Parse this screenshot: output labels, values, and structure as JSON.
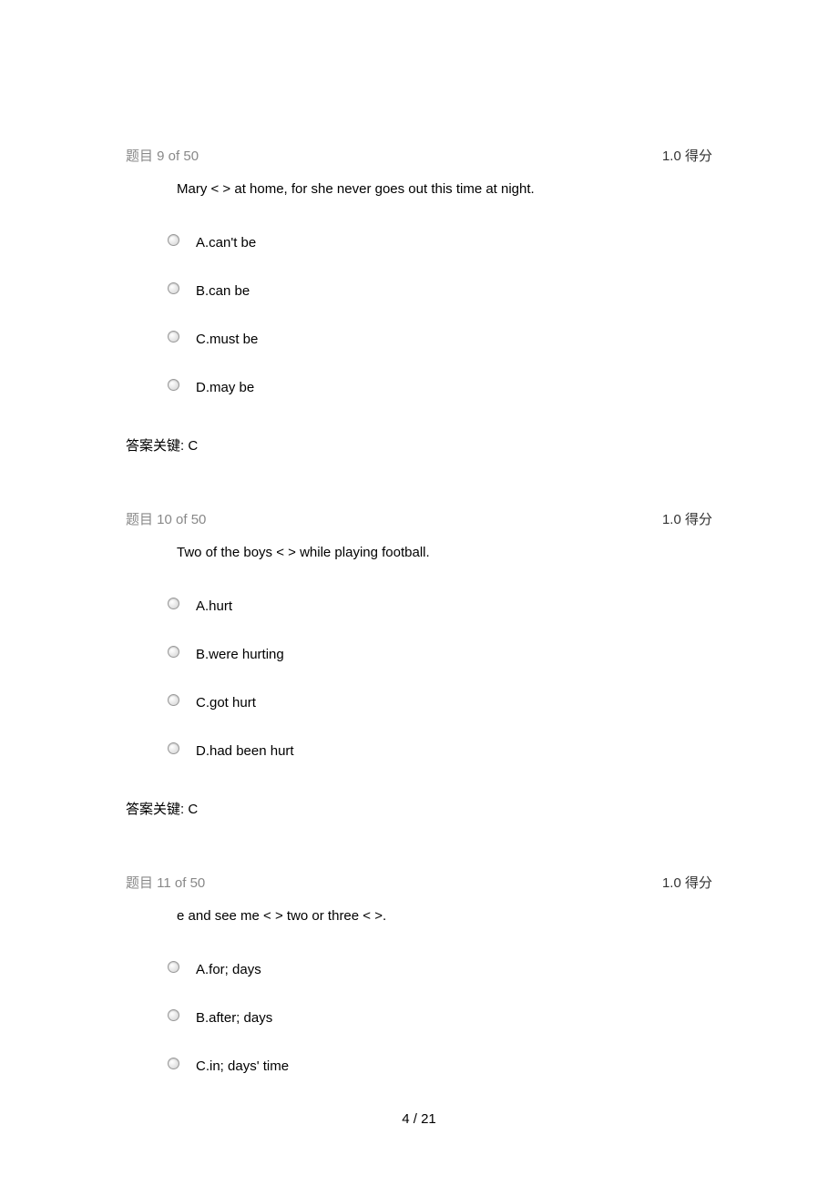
{
  "page": {
    "current": 4,
    "total": 21,
    "footer_text": "4 / 21"
  },
  "questions": [
    {
      "number_label": "题目  9 of 50",
      "score_label": "1.0  得分",
      "text": "Mary < > at home, for she never goes out this time at night.",
      "options": [
        "A.can't be",
        "B.can be",
        "C.must be",
        "D.may be"
      ],
      "answer_label": "答案关键: C"
    },
    {
      "number_label": "题目  10 of 50",
      "score_label": "1.0  得分",
      "text": "Two of the boys < > while playing football.",
      "options": [
        "A.hurt",
        "B.were hurting",
        "C.got hurt",
        "D.had been hurt"
      ],
      "answer_label": "答案关键: C"
    },
    {
      "number_label": "题目  11 of 50",
      "score_label": "1.0  得分",
      "text": "e and see me < > two or three < >.",
      "options": [
        "A.for; days",
        "B.after; days",
        "C.in; days' time"
      ],
      "answer_label": ""
    }
  ],
  "colors": {
    "background": "#ffffff",
    "question_number": "#888888",
    "text": "#000000",
    "score": "#333333",
    "radio_border": "#999999"
  },
  "typography": {
    "base_fontsize": 15,
    "font_family": "Arial, Microsoft YaHei, sans-serif"
  }
}
